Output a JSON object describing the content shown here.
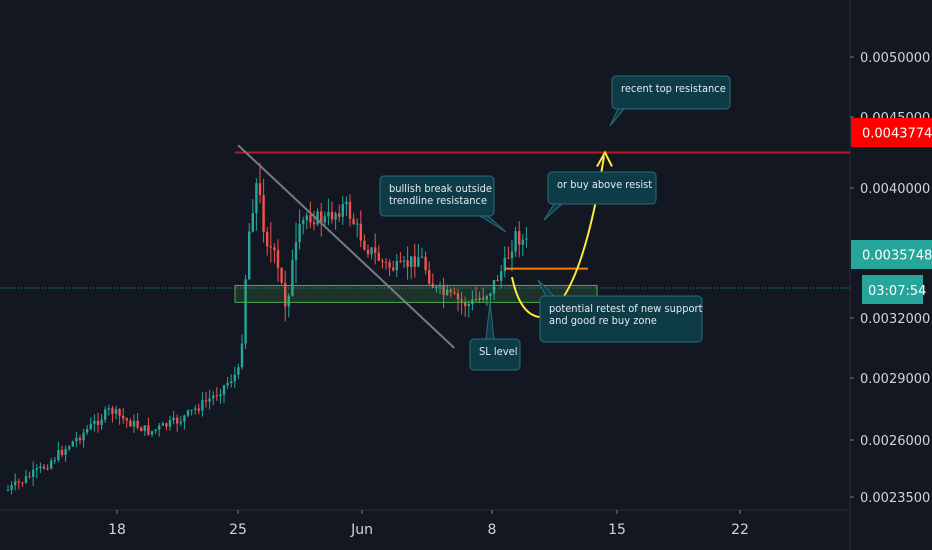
{
  "chart_data": {
    "type": "candlestick",
    "y_axis": {
      "ticks": [
        "0.0050000",
        "0.0045000",
        "0.0040000",
        "0.0032000",
        "0.0029000",
        "0.0026000",
        "0.0023500"
      ],
      "ylim": [
        0.00232,
        0.00528
      ],
      "position": "right"
    },
    "x_axis": {
      "tick_labels": [
        "18",
        "25",
        "Jun",
        "8",
        "15",
        "22"
      ]
    },
    "price_badges": {
      "resistance": {
        "value": "0.0043774",
        "color": "#ff0000"
      },
      "current": {
        "value": "0.0035748",
        "color": "#26a69a"
      },
      "countdown": {
        "value": "03:07:54",
        "color": "#26a69a"
      }
    },
    "levels": {
      "resistance_price": 0.0043774,
      "current_price": 0.0035748,
      "support_zone": [
        0.00349,
        0.00359
      ],
      "orange_resistance": 0.00369,
      "trendline_start": {
        "day": 25,
        "price": 0.00442
      },
      "trendline_end": {
        "day": 37.5,
        "price": 0.00322
      }
    },
    "annotations": [
      {
        "id": "recent-top",
        "lines": [
          "recent top resistance"
        ]
      },
      {
        "id": "buy-above",
        "lines": [
          "or buy above resist"
        ]
      },
      {
        "id": "bullish-break",
        "lines": [
          "bullish break outside",
          "trendline resistance"
        ]
      },
      {
        "id": "retest",
        "lines": [
          "potential retest of new support",
          "and good re buy zone"
        ]
      },
      {
        "id": "sl",
        "lines": [
          "SL level"
        ]
      }
    ],
    "colors": {
      "background": "#131722",
      "up": "#26a69a",
      "down": "#ef5350",
      "resistance_line": "#b71c1c",
      "trendline": "#787b86",
      "support_zone": "#4caf50",
      "projection": "#ffeb3b",
      "orange_line": "#f57c00",
      "callout": "#0d3c47"
    },
    "grid": false
  }
}
